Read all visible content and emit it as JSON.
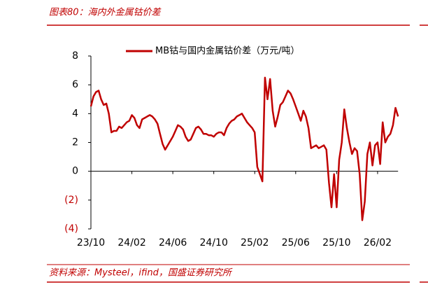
{
  "title_bar": "图表80：海内外金属钴价差",
  "source": "资料来源：Mysteel，ifind，国盛证券研究所",
  "chart_data": {
    "type": "line",
    "categories": [
      "23/10",
      null,
      null,
      null,
      null,
      null,
      null,
      null,
      null,
      null,
      null,
      null,
      null,
      null,
      null,
      null,
      "24/02",
      null,
      null,
      null,
      null,
      null,
      null,
      null,
      null,
      null,
      null,
      null,
      null,
      null,
      null,
      null,
      "24/06",
      null,
      null,
      null,
      null,
      null,
      null,
      null,
      null,
      null,
      null,
      null,
      null,
      null,
      null,
      null,
      "24/10",
      null,
      null,
      null,
      null,
      null,
      null,
      null,
      null,
      null,
      null,
      null,
      null,
      null,
      null,
      null,
      "25/02",
      null,
      null,
      null,
      null,
      null,
      null,
      null,
      null,
      null,
      null,
      null,
      null,
      null,
      null,
      null,
      "25/06",
      null,
      null,
      null,
      null,
      null,
      null,
      null,
      null,
      null,
      null,
      null,
      null,
      null,
      null,
      null,
      "25/10",
      null,
      null,
      null,
      null,
      null,
      null,
      null,
      null,
      null,
      null,
      null,
      null,
      null,
      null,
      null,
      "26/02",
      null,
      null,
      null,
      null,
      null,
      null,
      null,
      null
    ],
    "series": [
      {
        "name": "MB钴与国内金属钴价差（万元/吨）",
        "color": "#c00000",
        "values": [
          4.5,
          5.2,
          5.5,
          5.6,
          5.0,
          4.6,
          4.7,
          4.0,
          2.7,
          2.8,
          2.8,
          3.1,
          3.0,
          3.2,
          3.4,
          3.5,
          3.9,
          3.7,
          3.2,
          3.0,
          3.6,
          3.7,
          3.8,
          3.9,
          3.8,
          3.6,
          3.3,
          2.6,
          1.9,
          1.5,
          1.8,
          2.1,
          2.4,
          2.8,
          3.2,
          3.1,
          2.9,
          2.4,
          2.1,
          2.2,
          2.6,
          3.0,
          3.1,
          2.9,
          2.6,
          2.6,
          2.5,
          2.5,
          2.4,
          2.6,
          2.7,
          2.7,
          2.5,
          3.0,
          3.3,
          3.5,
          3.6,
          3.8,
          3.9,
          4.0,
          3.7,
          3.4,
          3.2,
          3.0,
          2.7,
          0.3,
          -0.2,
          -0.7,
          6.5,
          5.0,
          6.4,
          4.2,
          3.1,
          3.8,
          4.6,
          4.8,
          5.2,
          5.6,
          5.4,
          5.0,
          4.5,
          4.0,
          3.5,
          4.2,
          3.8,
          3.0,
          1.6,
          1.7,
          1.8,
          1.6,
          1.7,
          1.8,
          1.5,
          -0.8,
          -2.5,
          -0.2,
          -2.5,
          0.8,
          2.0,
          4.3,
          3.0,
          2.0,
          1.2,
          1.6,
          1.4,
          -0.2,
          -3.4,
          -2.1,
          1.2,
          2.0,
          0.4,
          1.8,
          2.0,
          0.5,
          3.4,
          2.0,
          2.4,
          2.6,
          3.2,
          4.4,
          3.8
        ]
      }
    ],
    "ylim": [
      -4,
      8
    ],
    "yticks": [
      8,
      6,
      4,
      2,
      0,
      {
        "value": -2,
        "label": "(2)"
      },
      {
        "value": -4,
        "label": "(4)"
      }
    ],
    "negative_tick_color": "#c00000",
    "legend": "top"
  }
}
